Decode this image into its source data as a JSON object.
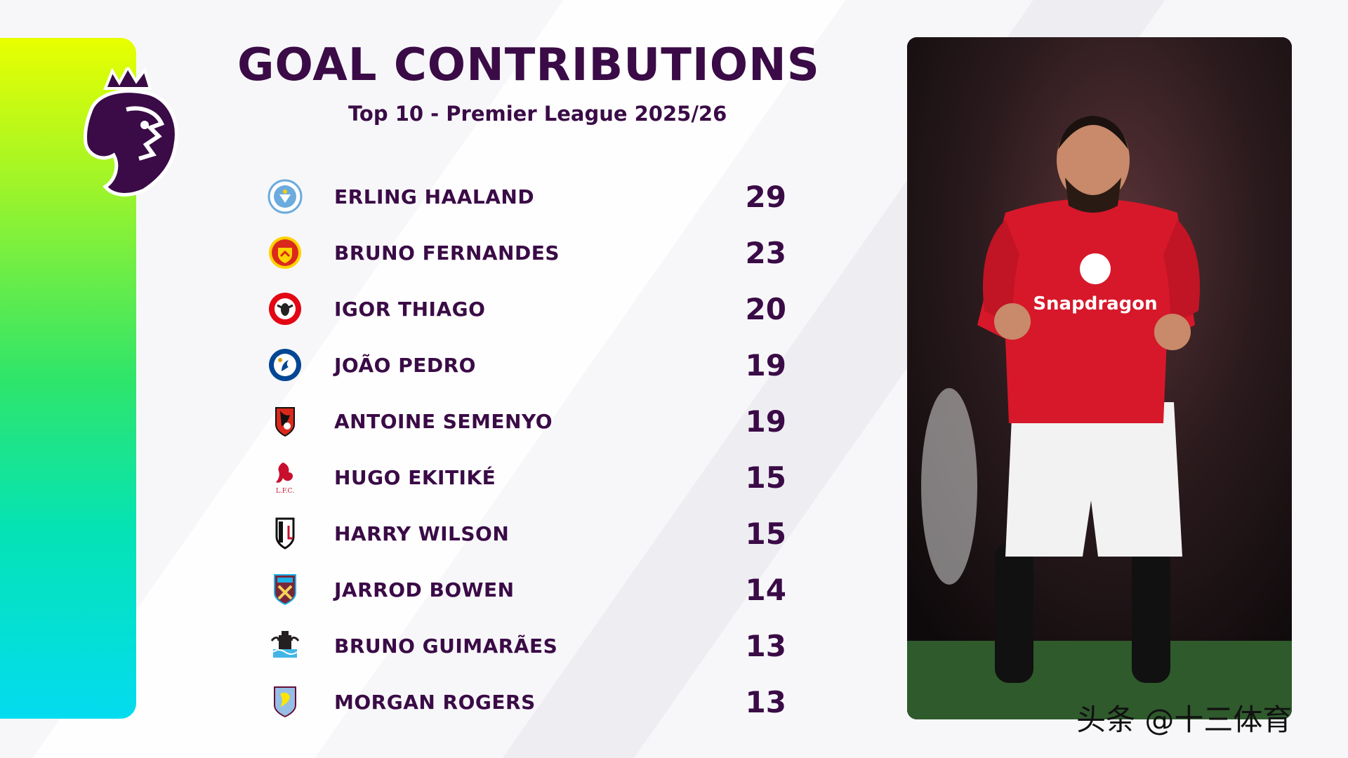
{
  "header": {
    "title": "GOAL CONTRIBUTIONS",
    "subtitle": "Top 10 - Premier League 2025/26"
  },
  "rows": [
    {
      "name": "ERLING HAALAND",
      "value": "29",
      "club_icon": "man-city-crest-icon",
      "color": "#6cabdd"
    },
    {
      "name": "BRUNO FERNANDES",
      "value": "23",
      "club_icon": "man-utd-crest-icon",
      "color": "#da291c"
    },
    {
      "name": "IGOR THIAGO",
      "value": "20",
      "club_icon": "brentford-crest-icon",
      "color": "#e30613"
    },
    {
      "name": "JOÃO PEDRO",
      "value": "19",
      "club_icon": "chelsea-crest-icon",
      "color": "#034694"
    },
    {
      "name": "ANTOINE SEMENYO",
      "value": "19",
      "club_icon": "bournemouth-crest-icon",
      "color": "#da291c"
    },
    {
      "name": "HUGO EKITIKÉ",
      "value": "15",
      "club_icon": "liverpool-crest-icon",
      "color": "#c8102e"
    },
    {
      "name": "HARRY WILSON",
      "value": "15",
      "club_icon": "fulham-crest-icon",
      "color": "#000000"
    },
    {
      "name": "JARROD BOWEN",
      "value": "14",
      "club_icon": "west-ham-crest-icon",
      "color": "#7a263a"
    },
    {
      "name": "BRUNO GUIMARÃES",
      "value": "13",
      "club_icon": "newcastle-crest-icon",
      "color": "#241f20"
    },
    {
      "name": "MORGAN ROGERS",
      "value": "13",
      "club_icon": "aston-villa-crest-icon",
      "color": "#95bfe5"
    }
  ],
  "photo": {
    "shirt_sponsor": "Snapdragon"
  },
  "watermark": "头条 @十三体育",
  "colors": {
    "primary": "#3a0b46",
    "gradient": [
      "#e8ff00",
      "#2fe56a",
      "#04dcf0"
    ]
  }
}
